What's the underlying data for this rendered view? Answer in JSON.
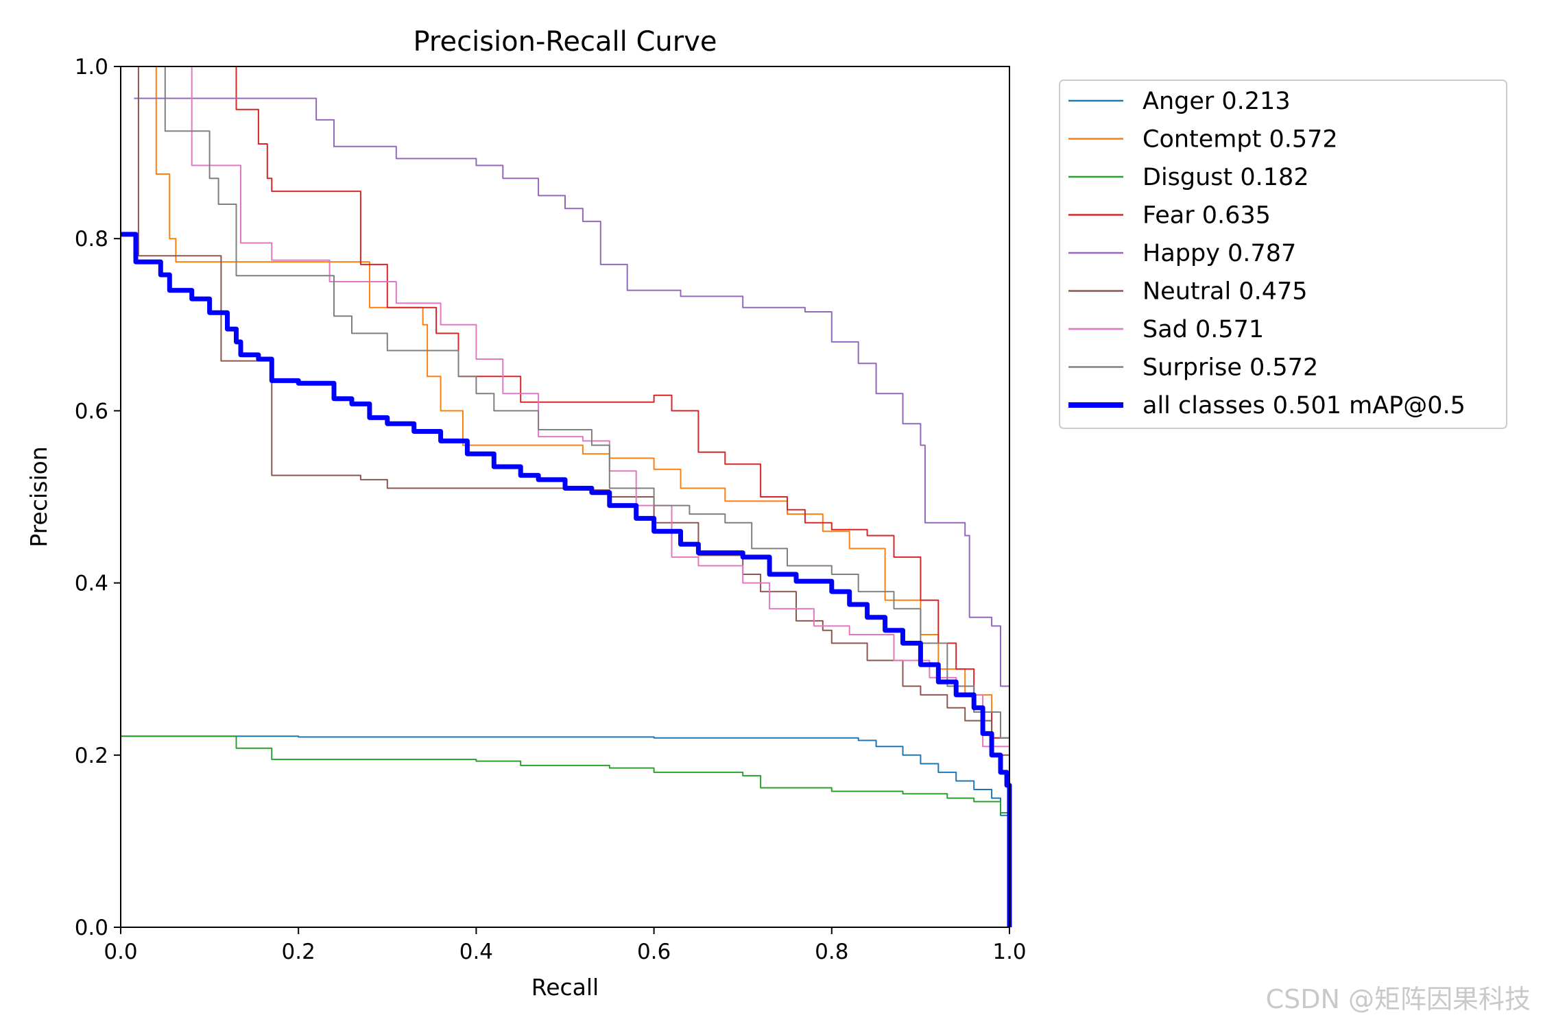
{
  "chart_data": {
    "type": "line",
    "title": "Precision-Recall Curve",
    "xlabel": "Recall",
    "ylabel": "Precision",
    "xlim": [
      0,
      1
    ],
    "ylim": [
      0,
      1
    ],
    "xticks": [
      "0.0",
      "0.2",
      "0.4",
      "0.6",
      "0.8",
      "1.0"
    ],
    "yticks": [
      "0.0",
      "0.2",
      "0.4",
      "0.6",
      "0.8",
      "1.0"
    ],
    "grid": false,
    "legend_position": "outside-right-top",
    "series": [
      {
        "name": "Anger 0.213",
        "color": "#1f77b4",
        "width": 2,
        "points": [
          [
            0,
            0.222
          ],
          [
            0.2,
            0.221
          ],
          [
            0.4,
            0.221
          ],
          [
            0.6,
            0.22
          ],
          [
            0.79,
            0.22
          ],
          [
            0.83,
            0.217
          ],
          [
            0.85,
            0.21
          ],
          [
            0.88,
            0.2
          ],
          [
            0.9,
            0.19
          ],
          [
            0.92,
            0.18
          ],
          [
            0.94,
            0.17
          ],
          [
            0.96,
            0.16
          ],
          [
            0.98,
            0.15
          ],
          [
            0.99,
            0.13
          ],
          [
            1.0,
            0.13
          ]
        ]
      },
      {
        "name": "Contempt 0.572",
        "color": "#ff7f0e",
        "width": 2,
        "points": [
          [
            0.03,
            1.0
          ],
          [
            0.04,
            0.875
          ],
          [
            0.055,
            0.8
          ],
          [
            0.062,
            0.773
          ],
          [
            0.27,
            0.773
          ],
          [
            0.28,
            0.72
          ],
          [
            0.34,
            0.7
          ],
          [
            0.345,
            0.64
          ],
          [
            0.36,
            0.6
          ],
          [
            0.385,
            0.56
          ],
          [
            0.52,
            0.55
          ],
          [
            0.55,
            0.545
          ],
          [
            0.6,
            0.532
          ],
          [
            0.63,
            0.51
          ],
          [
            0.68,
            0.495
          ],
          [
            0.72,
            0.495
          ],
          [
            0.75,
            0.48
          ],
          [
            0.79,
            0.46
          ],
          [
            0.82,
            0.44
          ],
          [
            0.86,
            0.38
          ],
          [
            0.9,
            0.34
          ],
          [
            0.92,
            0.3
          ],
          [
            0.95,
            0.27
          ],
          [
            0.98,
            0.22
          ],
          [
            1.0,
            0.13
          ]
        ]
      },
      {
        "name": "Disgust 0.182",
        "color": "#2ca02c",
        "width": 2,
        "points": [
          [
            0,
            0.222
          ],
          [
            0.127,
            0.222
          ],
          [
            0.13,
            0.208
          ],
          [
            0.17,
            0.195
          ],
          [
            0.4,
            0.193
          ],
          [
            0.45,
            0.188
          ],
          [
            0.55,
            0.185
          ],
          [
            0.6,
            0.18
          ],
          [
            0.7,
            0.176
          ],
          [
            0.72,
            0.162
          ],
          [
            0.8,
            0.158
          ],
          [
            0.88,
            0.155
          ],
          [
            0.93,
            0.15
          ],
          [
            0.96,
            0.146
          ],
          [
            0.99,
            0.133
          ],
          [
            1.0,
            0.13
          ]
        ]
      },
      {
        "name": "Fear 0.635",
        "color": "#d62728",
        "width": 2,
        "points": [
          [
            0.127,
            1.0
          ],
          [
            0.13,
            0.95
          ],
          [
            0.155,
            0.91
          ],
          [
            0.165,
            0.87
          ],
          [
            0.17,
            0.855
          ],
          [
            0.235,
            0.855
          ],
          [
            0.27,
            0.77
          ],
          [
            0.3,
            0.72
          ],
          [
            0.355,
            0.69
          ],
          [
            0.38,
            0.64
          ],
          [
            0.45,
            0.61
          ],
          [
            0.6,
            0.618
          ],
          [
            0.62,
            0.6
          ],
          [
            0.65,
            0.552
          ],
          [
            0.68,
            0.538
          ],
          [
            0.72,
            0.5
          ],
          [
            0.75,
            0.485
          ],
          [
            0.77,
            0.47
          ],
          [
            0.8,
            0.462
          ],
          [
            0.84,
            0.455
          ],
          [
            0.87,
            0.43
          ],
          [
            0.9,
            0.38
          ],
          [
            0.92,
            0.33
          ],
          [
            0.94,
            0.3
          ],
          [
            0.96,
            0.25
          ],
          [
            0.98,
            0.22
          ],
          [
            1.0,
            0.15
          ]
        ]
      },
      {
        "name": "Happy 0.787",
        "color": "#9467bd",
        "width": 2,
        "points": [
          [
            0.015,
            0.963
          ],
          [
            0.2,
            0.963
          ],
          [
            0.22,
            0.938
          ],
          [
            0.24,
            0.907
          ],
          [
            0.31,
            0.893
          ],
          [
            0.4,
            0.885
          ],
          [
            0.43,
            0.87
          ],
          [
            0.47,
            0.85
          ],
          [
            0.5,
            0.835
          ],
          [
            0.52,
            0.82
          ],
          [
            0.54,
            0.77
          ],
          [
            0.57,
            0.74
          ],
          [
            0.63,
            0.733
          ],
          [
            0.7,
            0.72
          ],
          [
            0.77,
            0.715
          ],
          [
            0.8,
            0.68
          ],
          [
            0.83,
            0.655
          ],
          [
            0.85,
            0.62
          ],
          [
            0.88,
            0.585
          ],
          [
            0.9,
            0.56
          ],
          [
            0.905,
            0.47
          ],
          [
            0.95,
            0.455
          ],
          [
            0.955,
            0.36
          ],
          [
            0.98,
            0.35
          ],
          [
            0.99,
            0.28
          ],
          [
            1.0,
            0.25
          ]
        ]
      },
      {
        "name": "Neutral 0.475",
        "color": "#8c564b",
        "width": 2,
        "points": [
          [
            0.015,
            1.0
          ],
          [
            0.02,
            0.78
          ],
          [
            0.11,
            0.78
          ],
          [
            0.113,
            0.658
          ],
          [
            0.165,
            0.658
          ],
          [
            0.17,
            0.525
          ],
          [
            0.27,
            0.52
          ],
          [
            0.3,
            0.51
          ],
          [
            0.5,
            0.508
          ],
          [
            0.55,
            0.5
          ],
          [
            0.6,
            0.47
          ],
          [
            0.65,
            0.432
          ],
          [
            0.7,
            0.41
          ],
          [
            0.72,
            0.39
          ],
          [
            0.76,
            0.356
          ],
          [
            0.79,
            0.345
          ],
          [
            0.8,
            0.33
          ],
          [
            0.84,
            0.31
          ],
          [
            0.88,
            0.28
          ],
          [
            0.9,
            0.27
          ],
          [
            0.93,
            0.255
          ],
          [
            0.95,
            0.24
          ],
          [
            0.98,
            0.2
          ],
          [
            1.0,
            0.16
          ]
        ]
      },
      {
        "name": "Sad 0.571",
        "color": "#e377c2",
        "width": 2,
        "points": [
          [
            0.08,
            1.0
          ],
          [
            0.08,
            0.885
          ],
          [
            0.12,
            0.885
          ],
          [
            0.135,
            0.795
          ],
          [
            0.17,
            0.775
          ],
          [
            0.225,
            0.775
          ],
          [
            0.235,
            0.75
          ],
          [
            0.31,
            0.725
          ],
          [
            0.36,
            0.7
          ],
          [
            0.4,
            0.66
          ],
          [
            0.43,
            0.62
          ],
          [
            0.47,
            0.57
          ],
          [
            0.52,
            0.565
          ],
          [
            0.55,
            0.53
          ],
          [
            0.58,
            0.49
          ],
          [
            0.62,
            0.43
          ],
          [
            0.65,
            0.42
          ],
          [
            0.7,
            0.4
          ],
          [
            0.73,
            0.37
          ],
          [
            0.78,
            0.35
          ],
          [
            0.82,
            0.34
          ],
          [
            0.87,
            0.31
          ],
          [
            0.91,
            0.29
          ],
          [
            0.94,
            0.27
          ],
          [
            0.97,
            0.21
          ],
          [
            1.0,
            0.17
          ]
        ]
      },
      {
        "name": "Surprise 0.572",
        "color": "#7f7f7f",
        "width": 2,
        "points": [
          [
            0.045,
            1.0
          ],
          [
            0.05,
            0.925
          ],
          [
            0.095,
            0.925
          ],
          [
            0.1,
            0.87
          ],
          [
            0.11,
            0.84
          ],
          [
            0.125,
            0.84
          ],
          [
            0.13,
            0.757
          ],
          [
            0.225,
            0.757
          ],
          [
            0.24,
            0.71
          ],
          [
            0.26,
            0.69
          ],
          [
            0.3,
            0.67
          ],
          [
            0.36,
            0.67
          ],
          [
            0.38,
            0.64
          ],
          [
            0.4,
            0.62
          ],
          [
            0.42,
            0.6
          ],
          [
            0.47,
            0.578
          ],
          [
            0.53,
            0.56
          ],
          [
            0.55,
            0.51
          ],
          [
            0.6,
            0.49
          ],
          [
            0.64,
            0.48
          ],
          [
            0.68,
            0.47
          ],
          [
            0.71,
            0.44
          ],
          [
            0.75,
            0.42
          ],
          [
            0.8,
            0.41
          ],
          [
            0.83,
            0.39
          ],
          [
            0.87,
            0.37
          ],
          [
            0.9,
            0.33
          ],
          [
            0.93,
            0.28
          ],
          [
            0.96,
            0.25
          ],
          [
            0.99,
            0.22
          ],
          [
            1.0,
            0.2
          ]
        ]
      },
      {
        "name": "all classes 0.501 mAP@0.5",
        "color": "#0000ff",
        "width": 7,
        "points": [
          [
            0,
            0.805
          ],
          [
            0.015,
            0.805
          ],
          [
            0.017,
            0.773
          ],
          [
            0.04,
            0.773
          ],
          [
            0.045,
            0.758
          ],
          [
            0.055,
            0.74
          ],
          [
            0.08,
            0.73
          ],
          [
            0.1,
            0.714
          ],
          [
            0.12,
            0.695
          ],
          [
            0.13,
            0.68
          ],
          [
            0.135,
            0.665
          ],
          [
            0.155,
            0.66
          ],
          [
            0.17,
            0.635
          ],
          [
            0.2,
            0.632
          ],
          [
            0.24,
            0.614
          ],
          [
            0.26,
            0.608
          ],
          [
            0.28,
            0.592
          ],
          [
            0.3,
            0.585
          ],
          [
            0.33,
            0.576
          ],
          [
            0.36,
            0.565
          ],
          [
            0.39,
            0.55
          ],
          [
            0.42,
            0.535
          ],
          [
            0.45,
            0.525
          ],
          [
            0.47,
            0.52
          ],
          [
            0.5,
            0.51
          ],
          [
            0.53,
            0.505
          ],
          [
            0.55,
            0.49
          ],
          [
            0.58,
            0.475
          ],
          [
            0.6,
            0.46
          ],
          [
            0.63,
            0.445
          ],
          [
            0.65,
            0.435
          ],
          [
            0.7,
            0.43
          ],
          [
            0.73,
            0.41
          ],
          [
            0.76,
            0.402
          ],
          [
            0.8,
            0.39
          ],
          [
            0.82,
            0.375
          ],
          [
            0.84,
            0.36
          ],
          [
            0.86,
            0.345
          ],
          [
            0.88,
            0.33
          ],
          [
            0.9,
            0.305
          ],
          [
            0.92,
            0.285
          ],
          [
            0.94,
            0.27
          ],
          [
            0.96,
            0.255
          ],
          [
            0.97,
            0.225
          ],
          [
            0.98,
            0.2
          ],
          [
            0.99,
            0.18
          ],
          [
            0.997,
            0.165
          ],
          [
            1.0,
            0.0
          ]
        ]
      }
    ]
  },
  "watermark": "CSDN @矩阵因果科技"
}
